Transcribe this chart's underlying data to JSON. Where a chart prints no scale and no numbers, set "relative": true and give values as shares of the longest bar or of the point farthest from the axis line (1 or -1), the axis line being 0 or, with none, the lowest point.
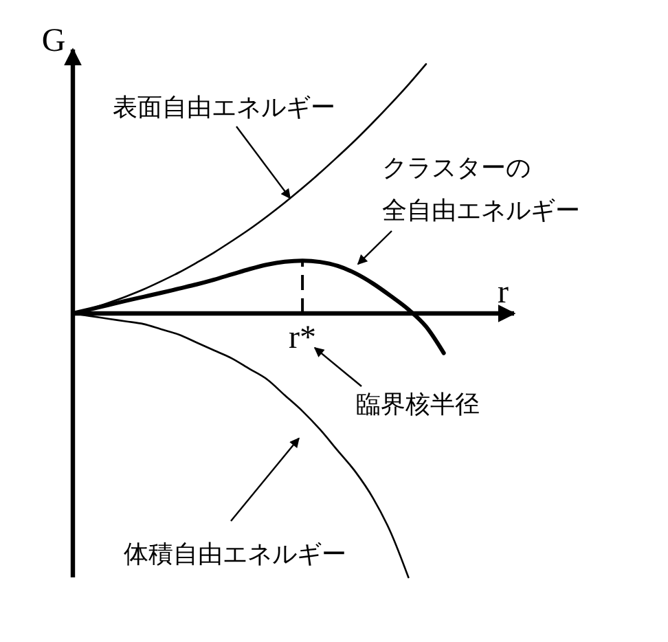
{
  "chart_data": {
    "type": "line",
    "relative": true,
    "xlabel": "r",
    "ylabel": "G",
    "categories": [
      null,
      null,
      null,
      null,
      null,
      null,
      null,
      null,
      null,
      null,
      null,
      null,
      null,
      null,
      null,
      null,
      null,
      null,
      null,
      null,
      null,
      null
    ],
    "series": [
      {
        "name": "表面自由エネルギー",
        "color": "#000000",
        "values": [
          0,
          0.018,
          0.04,
          0.064,
          0.091,
          0.122,
          0.155,
          0.192,
          0.231,
          0.274,
          0.319,
          0.368,
          0.42,
          0.475,
          0.533,
          0.594,
          0.657,
          0.724,
          0.794,
          0.867,
          0.945,
          null
        ]
      },
      {
        "name": "クラスターの全自由エネルギー",
        "color": "#000000",
        "values": [
          0,
          0.016,
          0.032,
          0.048,
          0.063,
          0.078,
          0.094,
          0.11,
          0.128,
          0.148,
          0.168,
          0.185,
          0.196,
          0.2,
          0.195,
          0.18,
          0.152,
          0.113,
          0.066,
          0.015,
          -0.05,
          -0.15
        ]
      },
      {
        "name": "体積自由エネルギー",
        "color": "#000000",
        "values": [
          0,
          -0.01,
          -0.02,
          -0.03,
          -0.04,
          -0.06,
          -0.08,
          -0.11,
          -0.14,
          -0.17,
          -0.21,
          -0.25,
          -0.31,
          -0.37,
          -0.44,
          -0.52,
          -0.6,
          -0.7,
          -0.83,
          -1,
          null,
          null
        ]
      }
    ],
    "annotations": [
      "r*",
      "臨界核半径"
    ]
  }
}
